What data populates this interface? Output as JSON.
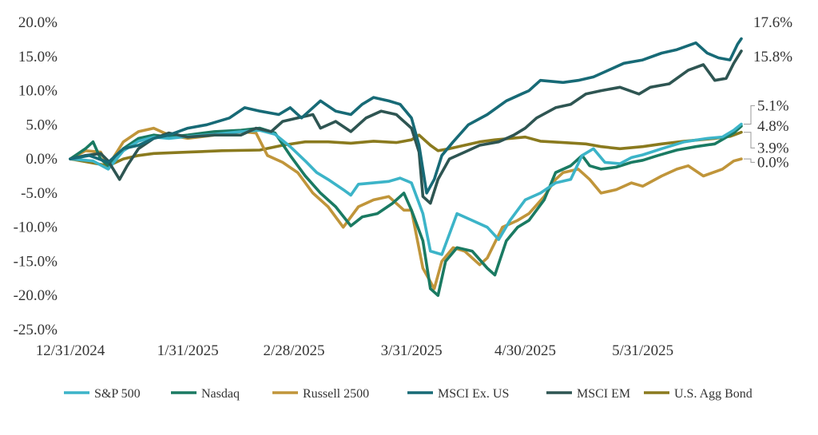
{
  "chart_data": {
    "type": "line",
    "x_ticks": [
      "12/31/2024",
      "1/31/2025",
      "2/28/2025",
      "3/31/2025",
      "4/30/2025",
      "5/31/2025"
    ],
    "x_tick_days": [
      0,
      31,
      59,
      90,
      120,
      151
    ],
    "x_range_days": [
      0,
      177
    ],
    "y_ticks": [
      "20.0%",
      "15.0%",
      "10.0%",
      "5.0%",
      "0.0%",
      "-5.0%",
      "-10.0%",
      "-15.0%",
      "-20.0%",
      "-25.0%"
    ],
    "ylim": [
      -25,
      20
    ],
    "grid": false,
    "legend_position": "bottom",
    "series": [
      {
        "name": "S&P 500",
        "color": "#3cb4c8",
        "end_label": "5.1%",
        "points": [
          [
            0,
            0
          ],
          [
            6,
            -0.3
          ],
          [
            10,
            -1.5
          ],
          [
            14,
            1.2
          ],
          [
            18,
            2.6
          ],
          [
            22,
            3.2
          ],
          [
            26,
            3.0
          ],
          [
            31,
            3.3
          ],
          [
            38,
            3.6
          ],
          [
            45,
            4.0
          ],
          [
            50,
            4.2
          ],
          [
            54,
            3.6
          ],
          [
            58,
            1.8
          ],
          [
            62,
            -0.3
          ],
          [
            65,
            -2.0
          ],
          [
            68,
            -3.0
          ],
          [
            72,
            -4.5
          ],
          [
            74,
            -5.3
          ],
          [
            76,
            -3.7
          ],
          [
            80,
            -3.5
          ],
          [
            84,
            -3.3
          ],
          [
            87,
            -2.8
          ],
          [
            90,
            -3.5
          ],
          [
            93,
            -8.0
          ],
          [
            95,
            -13.5
          ],
          [
            98,
            -14.0
          ],
          [
            100,
            -11.0
          ],
          [
            102,
            -8.0
          ],
          [
            106,
            -9.0
          ],
          [
            110,
            -10.0
          ],
          [
            113,
            -11.8
          ],
          [
            116,
            -9.0
          ],
          [
            120,
            -6.0
          ],
          [
            124,
            -5.0
          ],
          [
            128,
            -3.5
          ],
          [
            132,
            -3.0
          ],
          [
            135,
            0.5
          ],
          [
            138,
            1.5
          ],
          [
            141,
            -0.5
          ],
          [
            145,
            -0.7
          ],
          [
            148,
            0.2
          ],
          [
            151,
            0.6
          ],
          [
            156,
            1.5
          ],
          [
            162,
            2.5
          ],
          [
            168,
            3.0
          ],
          [
            172,
            3.2
          ],
          [
            175,
            4.2
          ],
          [
            177,
            5.1
          ]
        ]
      },
      {
        "name": "Nasdaq",
        "color": "#1a7a62",
        "end_label": "4.8%",
        "points": [
          [
            0,
            0
          ],
          [
            4,
            1.5
          ],
          [
            6,
            2.5
          ],
          [
            8,
            0
          ],
          [
            10,
            -1.0
          ],
          [
            14,
            1.5
          ],
          [
            18,
            3.0
          ],
          [
            22,
            3.5
          ],
          [
            26,
            3.2
          ],
          [
            31,
            3.5
          ],
          [
            38,
            4.0
          ],
          [
            45,
            4.2
          ],
          [
            50,
            4.5
          ],
          [
            54,
            3.8
          ],
          [
            58,
            0.5
          ],
          [
            62,
            -2.5
          ],
          [
            66,
            -5.0
          ],
          [
            70,
            -7.0
          ],
          [
            74,
            -9.8
          ],
          [
            77,
            -8.5
          ],
          [
            81,
            -8.0
          ],
          [
            85,
            -6.5
          ],
          [
            88,
            -5.0
          ],
          [
            90,
            -7.5
          ],
          [
            93,
            -12.0
          ],
          [
            95,
            -19.0
          ],
          [
            97,
            -20.0
          ],
          [
            99,
            -15.0
          ],
          [
            102,
            -13.0
          ],
          [
            106,
            -13.5
          ],
          [
            110,
            -16.0
          ],
          [
            112,
            -17.0
          ],
          [
            115,
            -12.0
          ],
          [
            118,
            -10.0
          ],
          [
            121,
            -9.0
          ],
          [
            125,
            -6.0
          ],
          [
            128,
            -2.0
          ],
          [
            132,
            -1.0
          ],
          [
            135,
            0.5
          ],
          [
            137,
            -1.0
          ],
          [
            140,
            -1.5
          ],
          [
            144,
            -1.2
          ],
          [
            148,
            -0.5
          ],
          [
            151,
            -0.2
          ],
          [
            155,
            0.5
          ],
          [
            160,
            1.3
          ],
          [
            165,
            1.8
          ],
          [
            170,
            2.2
          ],
          [
            175,
            3.8
          ],
          [
            177,
            4.8
          ]
        ]
      },
      {
        "name": "Russell 2500",
        "color": "#c0953a",
        "end_label": "",
        "points": [
          [
            0,
            0
          ],
          [
            4,
            1.2
          ],
          [
            8,
            1.0
          ],
          [
            10,
            -1.0
          ],
          [
            14,
            2.5
          ],
          [
            18,
            4.0
          ],
          [
            22,
            4.5
          ],
          [
            26,
            3.5
          ],
          [
            31,
            3.0
          ],
          [
            38,
            3.5
          ],
          [
            45,
            4.0
          ],
          [
            49,
            3.8
          ],
          [
            52,
            0.5
          ],
          [
            56,
            -0.5
          ],
          [
            60,
            -2.0
          ],
          [
            64,
            -5.0
          ],
          [
            68,
            -7.0
          ],
          [
            72,
            -10.0
          ],
          [
            76,
            -7.0
          ],
          [
            80,
            -6.0
          ],
          [
            84,
            -5.5
          ],
          [
            88,
            -7.5
          ],
          [
            90,
            -7.5
          ],
          [
            93,
            -16.0
          ],
          [
            96,
            -19.0
          ],
          [
            98,
            -15.0
          ],
          [
            101,
            -13.0
          ],
          [
            104,
            -13.5
          ],
          [
            108,
            -15.5
          ],
          [
            110,
            -14.5
          ],
          [
            114,
            -10.0
          ],
          [
            118,
            -9.0
          ],
          [
            121,
            -8.0
          ],
          [
            125,
            -5.5
          ],
          [
            128,
            -3.0
          ],
          [
            130,
            -2.0
          ],
          [
            134,
            -1.5
          ],
          [
            137,
            -3.0
          ],
          [
            140,
            -5.0
          ],
          [
            144,
            -4.5
          ],
          [
            148,
            -3.5
          ],
          [
            151,
            -4.0
          ],
          [
            156,
            -2.5
          ],
          [
            160,
            -1.5
          ],
          [
            163,
            -1.0
          ],
          [
            167,
            -2.5
          ],
          [
            172,
            -1.5
          ],
          [
            175,
            -0.3
          ],
          [
            177,
            0.0
          ]
        ]
      },
      {
        "name": "MSCI Ex. US",
        "color": "#176a76",
        "end_label": "17.6%",
        "points": [
          [
            0,
            0
          ],
          [
            5,
            0.5
          ],
          [
            10,
            -0.5
          ],
          [
            14,
            1.5
          ],
          [
            18,
            2.0
          ],
          [
            22,
            3.0
          ],
          [
            26,
            3.5
          ],
          [
            31,
            4.5
          ],
          [
            36,
            5.0
          ],
          [
            42,
            6.0
          ],
          [
            46,
            7.5
          ],
          [
            50,
            7.0
          ],
          [
            55,
            6.5
          ],
          [
            58,
            7.5
          ],
          [
            61,
            6.0
          ],
          [
            64,
            7.5
          ],
          [
            66,
            8.5
          ],
          [
            70,
            7.0
          ],
          [
            74,
            6.5
          ],
          [
            77,
            8.0
          ],
          [
            80,
            9.0
          ],
          [
            84,
            8.5
          ],
          [
            87,
            8.0
          ],
          [
            90,
            6.0
          ],
          [
            92,
            2.0
          ],
          [
            94,
            -5.0
          ],
          [
            96,
            -3.0
          ],
          [
            98,
            0.5
          ],
          [
            101,
            2.5
          ],
          [
            105,
            5.0
          ],
          [
            110,
            6.5
          ],
          [
            115,
            8.5
          ],
          [
            119,
            9.5
          ],
          [
            121,
            10.0
          ],
          [
            124,
            11.5
          ],
          [
            130,
            11.2
          ],
          [
            134,
            11.5
          ],
          [
            138,
            12.0
          ],
          [
            142,
            13.0
          ],
          [
            146,
            14.0
          ],
          [
            151,
            14.5
          ],
          [
            156,
            15.5
          ],
          [
            160,
            16.0
          ],
          [
            165,
            17.0
          ],
          [
            168,
            15.5
          ],
          [
            171,
            14.8
          ],
          [
            174,
            14.5
          ],
          [
            176,
            16.8
          ],
          [
            177,
            17.6
          ]
        ]
      },
      {
        "name": "MSCI EM",
        "color": "#2e5552",
        "end_label": "15.8%",
        "points": [
          [
            0,
            0
          ],
          [
            4,
            0.5
          ],
          [
            8,
            0.8
          ],
          [
            10,
            -0.3
          ],
          [
            13,
            -3.0
          ],
          [
            15,
            -1.0
          ],
          [
            18,
            1.5
          ],
          [
            22,
            3.0
          ],
          [
            26,
            3.8
          ],
          [
            31,
            3.2
          ],
          [
            38,
            3.5
          ],
          [
            45,
            3.5
          ],
          [
            49,
            4.5
          ],
          [
            53,
            4.0
          ],
          [
            56,
            5.5
          ],
          [
            60,
            6.0
          ],
          [
            64,
            6.5
          ],
          [
            66,
            4.5
          ],
          [
            70,
            5.5
          ],
          [
            74,
            4.0
          ],
          [
            78,
            6.0
          ],
          [
            82,
            7.0
          ],
          [
            86,
            6.5
          ],
          [
            90,
            4.5
          ],
          [
            92,
            1.0
          ],
          [
            93,
            -5.5
          ],
          [
            95,
            -6.5
          ],
          [
            97,
            -3.0
          ],
          [
            100,
            0.0
          ],
          [
            104,
            1.0
          ],
          [
            108,
            2.0
          ],
          [
            113,
            2.5
          ],
          [
            117,
            3.5
          ],
          [
            120,
            4.5
          ],
          [
            123,
            6.0
          ],
          [
            128,
            7.5
          ],
          [
            132,
            8.0
          ],
          [
            136,
            9.5
          ],
          [
            140,
            10.0
          ],
          [
            145,
            10.5
          ],
          [
            150,
            9.5
          ],
          [
            153,
            10.5
          ],
          [
            158,
            11.0
          ],
          [
            163,
            13.0
          ],
          [
            167,
            13.8
          ],
          [
            170,
            11.5
          ],
          [
            173,
            11.8
          ],
          [
            175,
            14.0
          ],
          [
            177,
            15.8
          ]
        ]
      },
      {
        "name": "U.S. Agg Bond",
        "color": "#8a7a1e",
        "end_label": "3.9%",
        "points": [
          [
            0,
            0
          ],
          [
            10,
            -1.0
          ],
          [
            14,
            0.0
          ],
          [
            18,
            0.5
          ],
          [
            22,
            0.8
          ],
          [
            31,
            1.0
          ],
          [
            40,
            1.2
          ],
          [
            50,
            1.3
          ],
          [
            56,
            2.0
          ],
          [
            62,
            2.5
          ],
          [
            68,
            2.5
          ],
          [
            74,
            2.3
          ],
          [
            80,
            2.6
          ],
          [
            86,
            2.4
          ],
          [
            90,
            2.8
          ],
          [
            92,
            3.5
          ],
          [
            95,
            2.0
          ],
          [
            97,
            1.2
          ],
          [
            100,
            1.5
          ],
          [
            104,
            2.0
          ],
          [
            108,
            2.5
          ],
          [
            112,
            2.8
          ],
          [
            116,
            3.0
          ],
          [
            120,
            3.2
          ],
          [
            124,
            2.6
          ],
          [
            130,
            2.4
          ],
          [
            136,
            2.2
          ],
          [
            140,
            1.8
          ],
          [
            145,
            1.5
          ],
          [
            151,
            1.8
          ],
          [
            156,
            2.2
          ],
          [
            162,
            2.6
          ],
          [
            166,
            2.8
          ],
          [
            170,
            3.0
          ],
          [
            174,
            3.3
          ],
          [
            177,
            3.9
          ]
        ]
      }
    ]
  }
}
